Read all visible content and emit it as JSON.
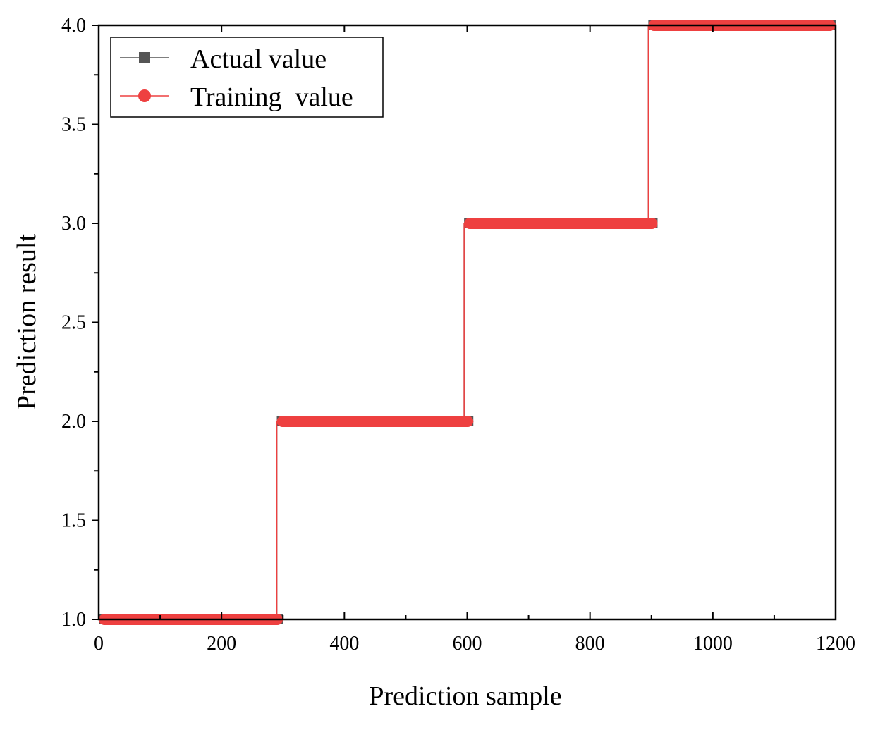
{
  "chart_data": {
    "type": "line",
    "title": "",
    "xlabel": "Prediction sample",
    "ylabel": "Prediction result",
    "xlim": [
      0,
      1200
    ],
    "ylim": [
      1.0,
      4.0
    ],
    "xticks": [
      0,
      200,
      400,
      600,
      800,
      1000,
      1200
    ],
    "xtick_labels": [
      "0",
      "200",
      "400",
      "600",
      "800",
      "1000",
      "1200"
    ],
    "yticks": [
      1.0,
      1.5,
      2.0,
      2.5,
      3.0,
      3.5,
      4.0
    ],
    "ytick_labels": [
      "1.0",
      "1.5",
      "2.0",
      "2.5",
      "3.0",
      "3.5",
      "4.0"
    ],
    "grid": false,
    "legend_position": "top-left",
    "series": [
      {
        "name": "Actual value",
        "color": "#555555",
        "marker": "square",
        "segments": [
          {
            "x_start": 0,
            "x_end": 300,
            "value": 1
          },
          {
            "x_start": 290,
            "x_end": 610,
            "value": 2
          },
          {
            "x_start": 595,
            "x_end": 910,
            "value": 3
          },
          {
            "x_start": 895,
            "x_end": 1200,
            "value": 4
          }
        ]
      },
      {
        "name": "Training  value",
        "color": "#ee4040",
        "marker": "circle",
        "segments": [
          {
            "x_start": 0,
            "x_end": 300,
            "value": 1
          },
          {
            "x_start": 290,
            "x_end": 610,
            "value": 2
          },
          {
            "x_start": 595,
            "x_end": 910,
            "value": 3
          },
          {
            "x_start": 895,
            "x_end": 1200,
            "value": 4
          }
        ]
      }
    ]
  }
}
